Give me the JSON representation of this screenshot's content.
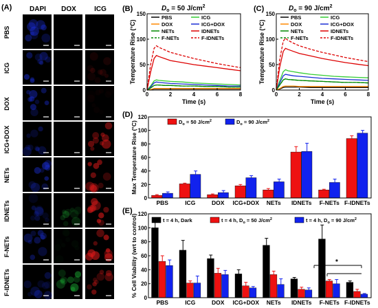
{
  "microscopy": {
    "panel_label": "(A)",
    "columns": [
      "DAPI",
      "DOX",
      "ICG"
    ],
    "rows": [
      "PBS",
      "ICG",
      "DOX",
      "ICG+DOX",
      "NETs",
      "IDNETs",
      "F-NETs",
      "F-IDNETs"
    ],
    "signal": {
      "dapi": [
        0.75,
        0.75,
        0.6,
        0.55,
        0.7,
        0.4,
        0.55,
        0.5
      ],
      "dox": [
        0.0,
        0.0,
        0.0,
        0.0,
        0.0,
        0.35,
        0.05,
        0.6
      ],
      "icg": [
        0.0,
        0.25,
        0.05,
        0.75,
        0.85,
        0.85,
        0.8,
        0.85
      ]
    },
    "colors": {
      "dapi": "#1a2ed6",
      "dox": "#1fc23a",
      "icg": "#e01a1a"
    }
  },
  "chart_data": [
    {
      "type": "line",
      "panel": "(B)",
      "title": "D",
      "title_sub": "o",
      "title_rest": " = 50 J/cm",
      "title_sup": "2",
      "xlabel": "Time (s)",
      "ylabel": "Temperature Rise (°C)",
      "xlim": [
        0,
        8
      ],
      "ylim": [
        0,
        150
      ],
      "xticks": [
        "0",
        "2",
        "4",
        "6",
        "8"
      ],
      "yticks": [
        "0",
        "50",
        "100",
        "150"
      ],
      "x": [
        0,
        0.3,
        0.6,
        0.8,
        1.0,
        1.5,
        2,
        3,
        4,
        5,
        6,
        7,
        8
      ],
      "series": [
        {
          "name": "PBS",
          "color": "#000000",
          "dash": false,
          "values": [
            0,
            1,
            2,
            2,
            2,
            2,
            2,
            2,
            2,
            2,
            2,
            2,
            2
          ]
        },
        {
          "name": "ICG",
          "color": "#33cc33",
          "dash": false,
          "values": [
            0,
            8,
            18,
            20,
            19,
            18,
            17,
            16,
            14,
            13,
            12,
            11,
            10
          ]
        },
        {
          "name": "DOX",
          "color": "#ff8800",
          "dash": false,
          "values": [
            0,
            1,
            3,
            3,
            3,
            3,
            3,
            3,
            3,
            3,
            3,
            3,
            3
          ]
        },
        {
          "name": "ICG+DOX",
          "color": "#1a2ed6",
          "dash": false,
          "values": [
            0,
            6,
            14,
            16,
            15,
            14,
            13,
            12,
            11,
            10,
            9,
            8,
            8
          ]
        },
        {
          "name": "NETs",
          "color": "#008800",
          "dash": false,
          "values": [
            0,
            4,
            9,
            10,
            10,
            9,
            9,
            8,
            8,
            7,
            7,
            6,
            6
          ]
        },
        {
          "name": "IDNETs",
          "color": "#dd0000",
          "dash": false,
          "values": [
            0,
            35,
            62,
            68,
            66,
            62,
            58,
            54,
            50,
            47,
            44,
            41,
            38
          ]
        },
        {
          "name": "F-NETs",
          "color": "#008800",
          "dash": true,
          "values": [
            0,
            4,
            9,
            10,
            10,
            9,
            9,
            8,
            8,
            7,
            7,
            6,
            6
          ]
        },
        {
          "name": "F-IDNETs",
          "color": "#dd0000",
          "dash": true,
          "values": [
            0,
            50,
            82,
            87,
            84,
            79,
            74,
            68,
            62,
            57,
            52,
            48,
            44
          ]
        }
      ]
    },
    {
      "type": "line",
      "panel": "(C)",
      "title": "D",
      "title_sub": "o",
      "title_rest": " = 90 J/cm",
      "title_sup": "2",
      "xlabel": "Time (s)",
      "ylabel": "Temperature Rise (°C)",
      "xlim": [
        0,
        8
      ],
      "ylim": [
        0,
        150
      ],
      "xticks": [
        "0",
        "2",
        "4",
        "6",
        "8"
      ],
      "yticks": [
        "0",
        "50",
        "100",
        "150"
      ],
      "x": [
        0,
        0.3,
        0.6,
        0.8,
        1.0,
        1.5,
        2,
        3,
        4,
        5,
        6,
        7,
        8
      ],
      "series": [
        {
          "name": "PBS",
          "color": "#000000",
          "dash": false,
          "values": [
            0,
            2,
            5,
            6,
            6,
            6,
            6,
            5,
            5,
            5,
            5,
            5,
            5
          ]
        },
        {
          "name": "ICG",
          "color": "#33cc33",
          "dash": false,
          "values": [
            0,
            18,
            36,
            40,
            38,
            36,
            34,
            31,
            29,
            27,
            26,
            25,
            24
          ]
        },
        {
          "name": "DOX",
          "color": "#ff8800",
          "dash": false,
          "values": [
            0,
            3,
            7,
            8,
            8,
            8,
            7,
            7,
            7,
            7,
            7,
            7,
            7
          ]
        },
        {
          "name": "ICG+DOX",
          "color": "#1a2ed6",
          "dash": false,
          "values": [
            0,
            14,
            28,
            31,
            30,
            28,
            27,
            25,
            23,
            22,
            21,
            20,
            19
          ]
        },
        {
          "name": "NETs",
          "color": "#008800",
          "dash": false,
          "values": [
            0,
            10,
            20,
            22,
            21,
            20,
            19,
            18,
            17,
            16,
            15,
            15,
            14
          ]
        },
        {
          "name": "IDNETs",
          "color": "#dd0000",
          "dash": false,
          "values": [
            0,
            45,
            76,
            82,
            80,
            76,
            72,
            67,
            62,
            58,
            54,
            51,
            48
          ]
        },
        {
          "name": "F-NETs",
          "color": "#008800",
          "dash": true,
          "values": [
            0,
            10,
            20,
            22,
            21,
            20,
            19,
            18,
            17,
            16,
            15,
            15,
            14
          ]
        },
        {
          "name": "F-IDNETs",
          "color": "#dd0000",
          "dash": true,
          "values": [
            0,
            60,
            96,
            102,
            98,
            92,
            87,
            80,
            74,
            69,
            64,
            60,
            56
          ]
        }
      ]
    },
    {
      "type": "bar",
      "panel": "(D)",
      "ylabel": "Max Temperature Rise (°C)",
      "ylim": [
        0,
        120
      ],
      "yticks": [
        "0",
        "20",
        "40",
        "60",
        "80",
        "100",
        "120"
      ],
      "categories": [
        "PBS",
        "ICG",
        "DOX",
        "ICG+DOX",
        "NETs",
        "IDNETs",
        "F-NETs",
        "F-IDNETs"
      ],
      "series": [
        {
          "name_a": "D",
          "name_sub": "o",
          "name_b": " = 50 J/cm",
          "name_sup": "2",
          "color": "#ee1111",
          "values": [
            4,
            21,
            5,
            18,
            12,
            68,
            12,
            88
          ],
          "errors": [
            1,
            1,
            1,
            2,
            2,
            8,
            1,
            4
          ]
        },
        {
          "name_a": "D",
          "name_sub": "o",
          "name_b": " = 90 J/cm",
          "name_sup": "2",
          "color": "#1122ee",
          "values": [
            7,
            35,
            8,
            30,
            24,
            69,
            23,
            96
          ],
          "errors": [
            2,
            5,
            3,
            3,
            4,
            12,
            5,
            4
          ]
        }
      ]
    },
    {
      "type": "bar",
      "panel": "(E)",
      "ylabel": "% Cell Viability (wrt to control)",
      "ylim": [
        0,
        120
      ],
      "yticks": [
        "0",
        "20",
        "40",
        "60",
        "80",
        "100",
        "120"
      ],
      "categories": [
        "PBS",
        "ICG",
        "DOX",
        "ICG+DOX",
        "NETs",
        "IDNETs",
        "F-NETs",
        "F-IDNETs"
      ],
      "series": [
        {
          "name_a": "t = 4 h, Dark",
          "name_sub": "",
          "name_b": "",
          "name_sup": "",
          "color": "#000000",
          "values": [
            100,
            68,
            56,
            34,
            75,
            27,
            84,
            22
          ],
          "errors": [
            8,
            14,
            5,
            6,
            10,
            2,
            20,
            2
          ]
        },
        {
          "name_a": "t = 4 h, D",
          "name_sub": "o",
          "name_b": " = 50 J/cm",
          "name_sup": "2",
          "color": "#ee1111",
          "values": [
            52,
            21,
            35,
            17,
            33,
            12,
            24,
            9
          ],
          "errors": [
            8,
            3,
            7,
            5,
            5,
            3,
            2,
            3
          ]
        },
        {
          "name_a": "t = 4 h, D",
          "name_sub": "o",
          "name_b": " = 90 J/cm",
          "name_sup": "2",
          "color": "#1122ee",
          "values": [
            46,
            21,
            33,
            14,
            19,
            11,
            20,
            5
          ],
          "errors": [
            8,
            10,
            6,
            2,
            8,
            3,
            6,
            1
          ]
        }
      ],
      "significance": "*"
    }
  ]
}
